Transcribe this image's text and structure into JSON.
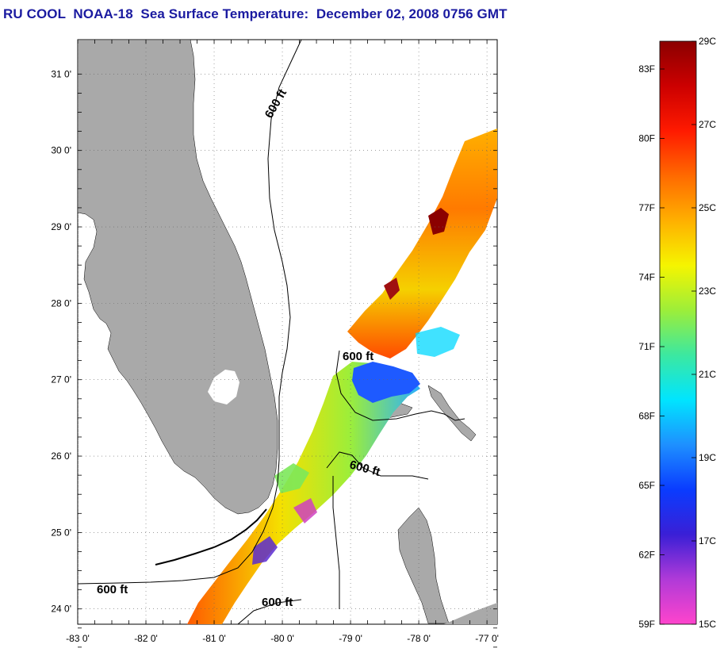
{
  "title": "RU COOL  NOAA-18  Sea Surface Temperature:  December 02, 2008 0756 GMT",
  "map": {
    "lat_labels": [
      "31 0'",
      "30 0'",
      "29 0'",
      "28 0'",
      "27 0'",
      "26 0'",
      "25 0'",
      "24 0'"
    ],
    "lon_labels": [
      "-83 0'",
      "-82 0'",
      "-81 0'",
      "-80 0'",
      "-79 0'",
      "-78 0'",
      "-77 0'"
    ],
    "lat_range": [
      23.8,
      31.45
    ],
    "lon_range": [
      -83.0,
      -76.85
    ],
    "contour_labels": [
      "600 ft",
      "600 ft",
      "600 ft",
      "600 ft",
      "600 ft"
    ],
    "land_color": "#a9a9a9",
    "grid": "dotted"
  },
  "colorbar": {
    "fahrenheit_labels": [
      "83F",
      "80F",
      "77F",
      "74F",
      "71F",
      "68F",
      "65F",
      "62F",
      "59F"
    ],
    "celsius_labels": [
      "29C",
      "27C",
      "25C",
      "23C",
      "21C",
      "19C",
      "17C",
      "15C"
    ],
    "range_c": [
      15,
      29
    ],
    "colors": [
      "#ff44cc",
      "#b03ad8",
      "#3a1fd6",
      "#0a3cff",
      "#1e90ff",
      "#00e5ff",
      "#3ce8a0",
      "#9cee3a",
      "#f5f500",
      "#ffb000",
      "#ff6a00",
      "#ff1a00",
      "#cc0000",
      "#8b0000"
    ]
  }
}
